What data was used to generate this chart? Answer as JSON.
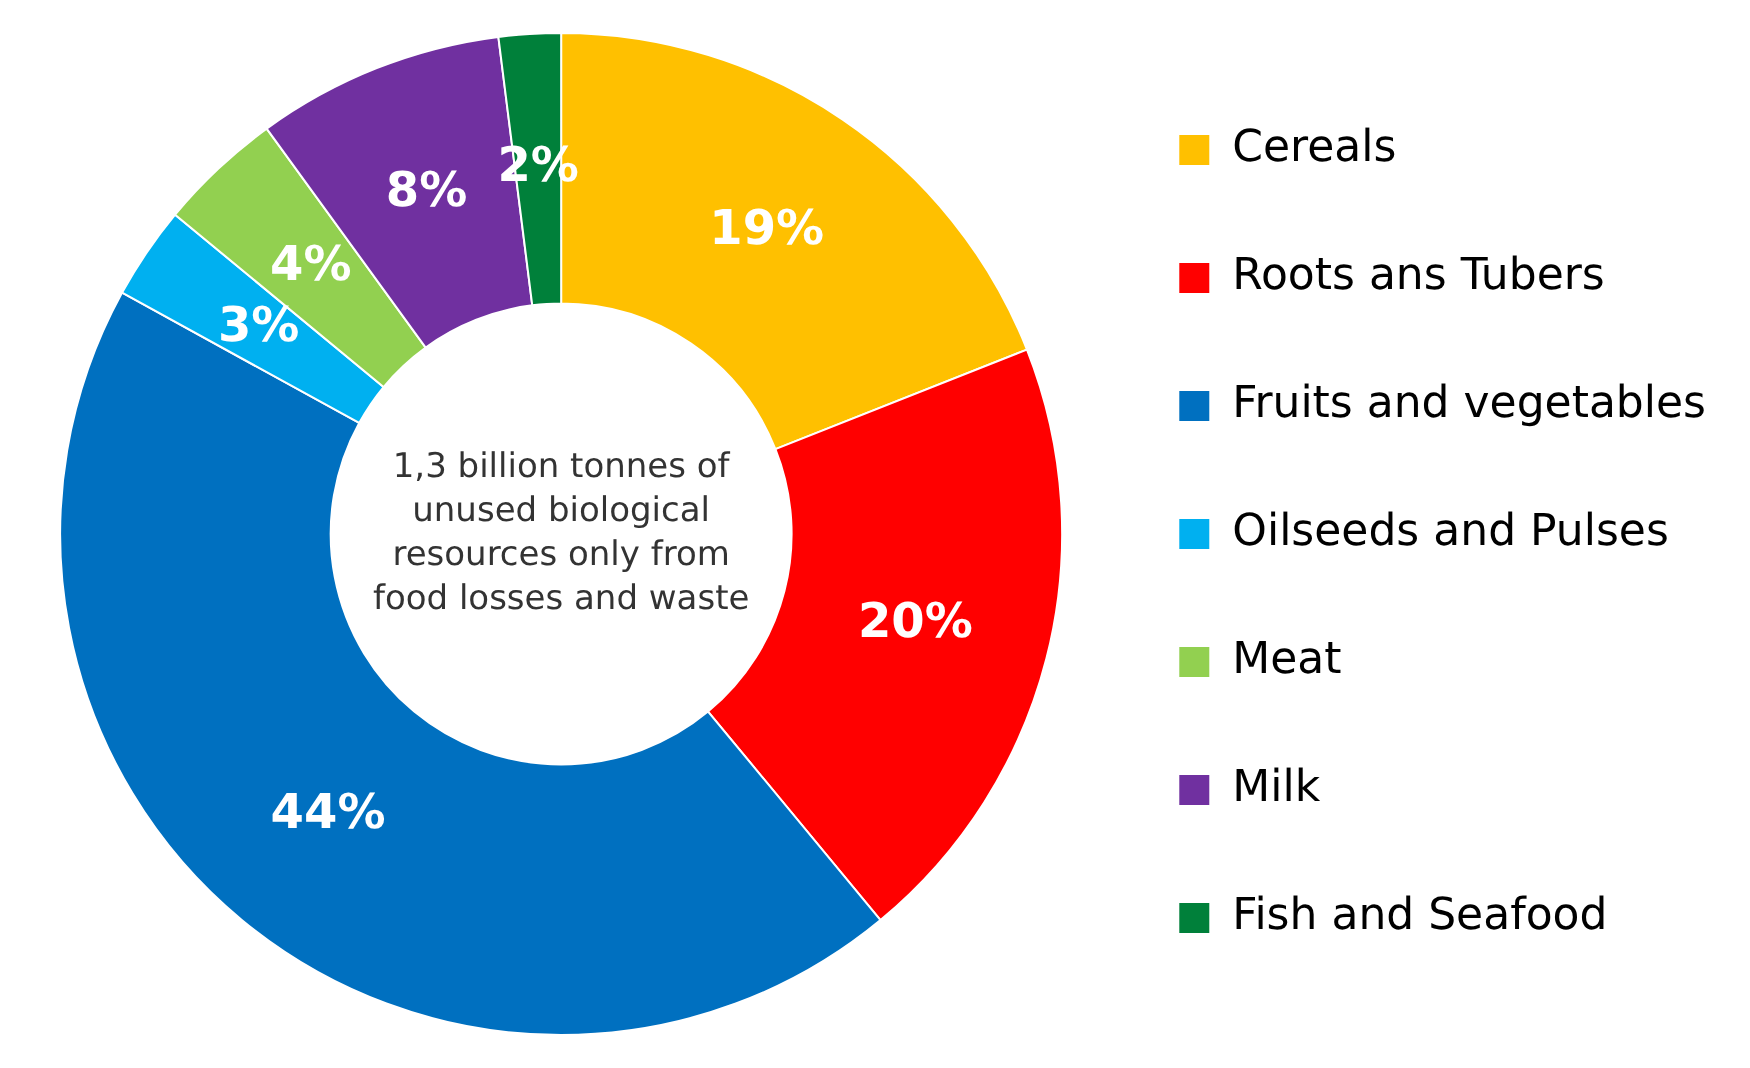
{
  "chart_data": {
    "type": "donut",
    "categories": [
      "Cereals",
      "Roots ans Tubers",
      "Fruits and vegetables",
      "Oilseeds and Pulses",
      "Meat",
      "Milk",
      "Fish and Seafood"
    ],
    "values": [
      19,
      20,
      44,
      3,
      4,
      8,
      2
    ],
    "colors": [
      "#ffc000",
      "#ff0000",
      "#0070c0",
      "#00b0f0",
      "#92d050",
      "#7030a0",
      "#00803a"
    ],
    "value_labels": [
      "19%",
      "20%",
      "44%",
      "3%",
      "4%",
      "8%",
      "2%"
    ],
    "annotations": [
      "1,3 billion tonnes of unused biological resources only from food losses and waste"
    ],
    "legend": "right"
  }
}
